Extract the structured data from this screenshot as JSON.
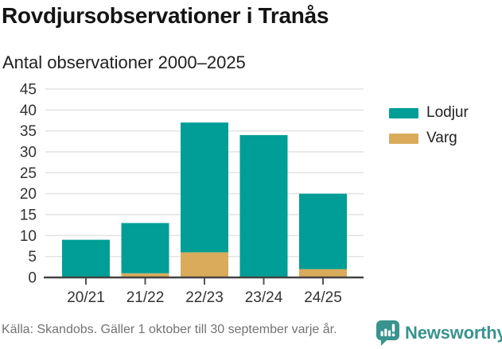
{
  "title": "Rovdjursobservationer i Tranås",
  "subtitle": "Antal observationer 2000–2025",
  "footer": {
    "source": "Källa: Skandobs. Gäller 1 oktober till 30 september varje år.",
    "brand": "Newsworthy"
  },
  "colors": {
    "lodjur": "#009E96",
    "varg": "#D9AB5B",
    "grid": "#E2E2E2",
    "axis_line": "#434343",
    "tick": "#555555",
    "axis_text": "#333333",
    "brand_teal": "#39938E"
  },
  "chart_data": {
    "type": "bar",
    "stacked": true,
    "title": "Rovdjursobservationer i Tranås",
    "subtitle": "Antal observationer 2000–2025",
    "categories": [
      "20/21",
      "21/22",
      "22/23",
      "23/24",
      "24/25"
    ],
    "series": [
      {
        "name": "Lodjur",
        "color": "#009E96",
        "values": [
          9,
          12,
          31,
          34,
          18
        ]
      },
      {
        "name": "Varg",
        "color": "#D9AB5B",
        "values": [
          0,
          1,
          6,
          0,
          2
        ]
      }
    ],
    "stack_bottom_first": [
      "Varg",
      "Lodjur"
    ],
    "totals": [
      9,
      13,
      37,
      34,
      20
    ],
    "xlabel": "",
    "ylabel": "",
    "ylim": [
      0,
      45
    ],
    "ytick_step": 5,
    "yticks": [
      0,
      5,
      10,
      15,
      20,
      25,
      30,
      35,
      40,
      45
    ],
    "grid": true,
    "legend_position": "right"
  }
}
